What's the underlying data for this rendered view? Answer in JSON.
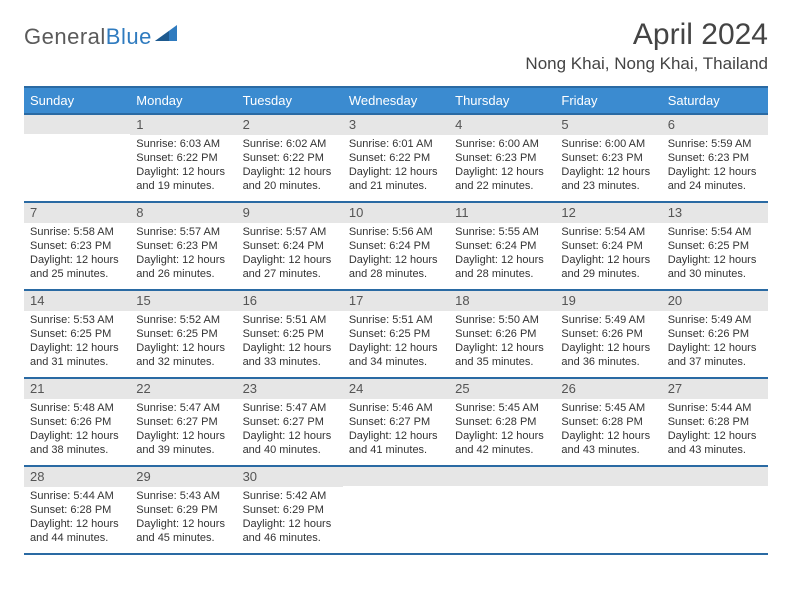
{
  "logo": {
    "part1": "General",
    "part2": "Blue"
  },
  "title": "April 2024",
  "location": "Nong Khai, Nong Khai, Thailand",
  "colors": {
    "header_bg": "#3b8bd0",
    "header_border": "#2a6aa3",
    "daynum_bg": "#e6e6e6",
    "logo_gray": "#5a5a5a",
    "logo_blue": "#2f7bbf"
  },
  "weekdays": [
    "Sunday",
    "Monday",
    "Tuesday",
    "Wednesday",
    "Thursday",
    "Friday",
    "Saturday"
  ],
  "weeks": [
    [
      null,
      {
        "n": "1",
        "sr": "6:03 AM",
        "ss": "6:22 PM",
        "dl": "12 hours and 19 minutes."
      },
      {
        "n": "2",
        "sr": "6:02 AM",
        "ss": "6:22 PM",
        "dl": "12 hours and 20 minutes."
      },
      {
        "n": "3",
        "sr": "6:01 AM",
        "ss": "6:22 PM",
        "dl": "12 hours and 21 minutes."
      },
      {
        "n": "4",
        "sr": "6:00 AM",
        "ss": "6:23 PM",
        "dl": "12 hours and 22 minutes."
      },
      {
        "n": "5",
        "sr": "6:00 AM",
        "ss": "6:23 PM",
        "dl": "12 hours and 23 minutes."
      },
      {
        "n": "6",
        "sr": "5:59 AM",
        "ss": "6:23 PM",
        "dl": "12 hours and 24 minutes."
      }
    ],
    [
      {
        "n": "7",
        "sr": "5:58 AM",
        "ss": "6:23 PM",
        "dl": "12 hours and 25 minutes."
      },
      {
        "n": "8",
        "sr": "5:57 AM",
        "ss": "6:23 PM",
        "dl": "12 hours and 26 minutes."
      },
      {
        "n": "9",
        "sr": "5:57 AM",
        "ss": "6:24 PM",
        "dl": "12 hours and 27 minutes."
      },
      {
        "n": "10",
        "sr": "5:56 AM",
        "ss": "6:24 PM",
        "dl": "12 hours and 28 minutes."
      },
      {
        "n": "11",
        "sr": "5:55 AM",
        "ss": "6:24 PM",
        "dl": "12 hours and 28 minutes."
      },
      {
        "n": "12",
        "sr": "5:54 AM",
        "ss": "6:24 PM",
        "dl": "12 hours and 29 minutes."
      },
      {
        "n": "13",
        "sr": "5:54 AM",
        "ss": "6:25 PM",
        "dl": "12 hours and 30 minutes."
      }
    ],
    [
      {
        "n": "14",
        "sr": "5:53 AM",
        "ss": "6:25 PM",
        "dl": "12 hours and 31 minutes."
      },
      {
        "n": "15",
        "sr": "5:52 AM",
        "ss": "6:25 PM",
        "dl": "12 hours and 32 minutes."
      },
      {
        "n": "16",
        "sr": "5:51 AM",
        "ss": "6:25 PM",
        "dl": "12 hours and 33 minutes."
      },
      {
        "n": "17",
        "sr": "5:51 AM",
        "ss": "6:25 PM",
        "dl": "12 hours and 34 minutes."
      },
      {
        "n": "18",
        "sr": "5:50 AM",
        "ss": "6:26 PM",
        "dl": "12 hours and 35 minutes."
      },
      {
        "n": "19",
        "sr": "5:49 AM",
        "ss": "6:26 PM",
        "dl": "12 hours and 36 minutes."
      },
      {
        "n": "20",
        "sr": "5:49 AM",
        "ss": "6:26 PM",
        "dl": "12 hours and 37 minutes."
      }
    ],
    [
      {
        "n": "21",
        "sr": "5:48 AM",
        "ss": "6:26 PM",
        "dl": "12 hours and 38 minutes."
      },
      {
        "n": "22",
        "sr": "5:47 AM",
        "ss": "6:27 PM",
        "dl": "12 hours and 39 minutes."
      },
      {
        "n": "23",
        "sr": "5:47 AM",
        "ss": "6:27 PM",
        "dl": "12 hours and 40 minutes."
      },
      {
        "n": "24",
        "sr": "5:46 AM",
        "ss": "6:27 PM",
        "dl": "12 hours and 41 minutes."
      },
      {
        "n": "25",
        "sr": "5:45 AM",
        "ss": "6:28 PM",
        "dl": "12 hours and 42 minutes."
      },
      {
        "n": "26",
        "sr": "5:45 AM",
        "ss": "6:28 PM",
        "dl": "12 hours and 43 minutes."
      },
      {
        "n": "27",
        "sr": "5:44 AM",
        "ss": "6:28 PM",
        "dl": "12 hours and 43 minutes."
      }
    ],
    [
      {
        "n": "28",
        "sr": "5:44 AM",
        "ss": "6:28 PM",
        "dl": "12 hours and 44 minutes."
      },
      {
        "n": "29",
        "sr": "5:43 AM",
        "ss": "6:29 PM",
        "dl": "12 hours and 45 minutes."
      },
      {
        "n": "30",
        "sr": "5:42 AM",
        "ss": "6:29 PM",
        "dl": "12 hours and 46 minutes."
      },
      null,
      null,
      null,
      null
    ]
  ],
  "labels": {
    "sunrise": "Sunrise:",
    "sunset": "Sunset:",
    "daylight": "Daylight:"
  }
}
